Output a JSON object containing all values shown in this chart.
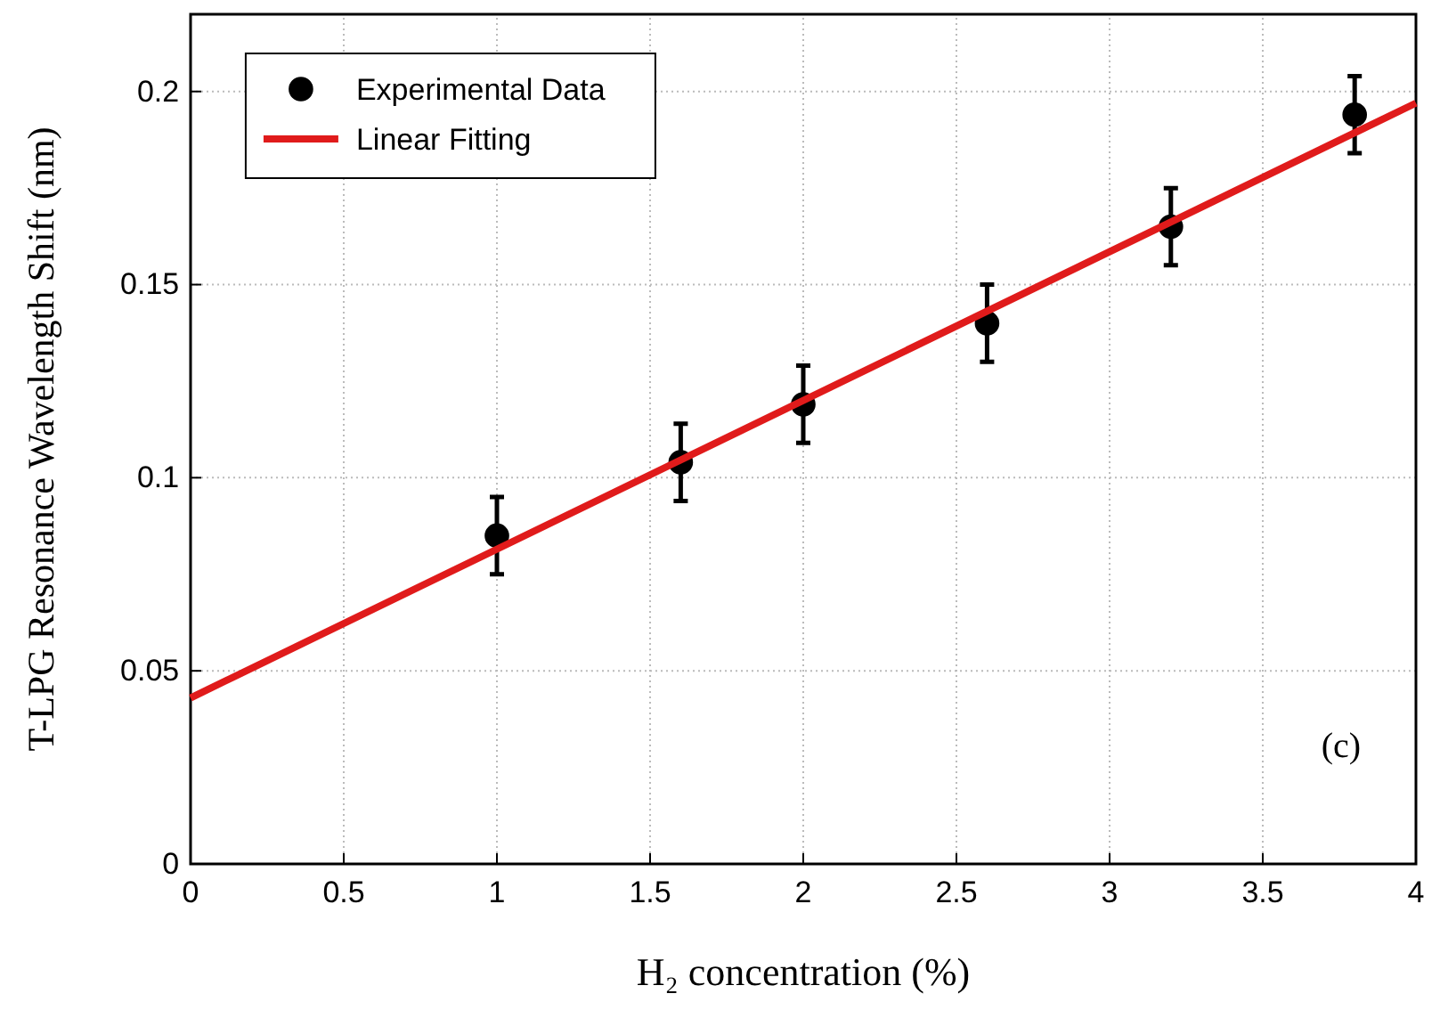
{
  "chart_data": {
    "type": "scatter",
    "xlabel": "H₂ concentration (%)",
    "ylabel": "T-LPG Resonance Wavelength Shift (nm)",
    "xlim": [
      0,
      4
    ],
    "ylim": [
      0,
      0.22
    ],
    "xticks": [
      0,
      0.5,
      1,
      1.5,
      2,
      2.5,
      3,
      3.5,
      4
    ],
    "yticks": [
      0,
      0.05,
      0.1,
      0.15,
      0.2
    ],
    "grid": true,
    "legend": "top left",
    "annotations": [
      "(c)"
    ],
    "series": [
      {
        "name": "Experimental Data",
        "marker": "circle",
        "color": "#000000",
        "x": [
          1,
          1.6,
          2,
          2.6,
          3.2,
          3.8
        ],
        "values": [
          0.085,
          0.104,
          0.119,
          0.14,
          0.165,
          0.194
        ],
        "errors": [
          0.01,
          0.01,
          0.01,
          0.01,
          0.01,
          0.01
        ]
      },
      {
        "name": "Linear Fitting",
        "type": "line",
        "color": "#e01b1b",
        "x": [
          0,
          4
        ],
        "values": [
          0.043,
          0.197
        ],
        "line_style": "solid"
      }
    ]
  }
}
